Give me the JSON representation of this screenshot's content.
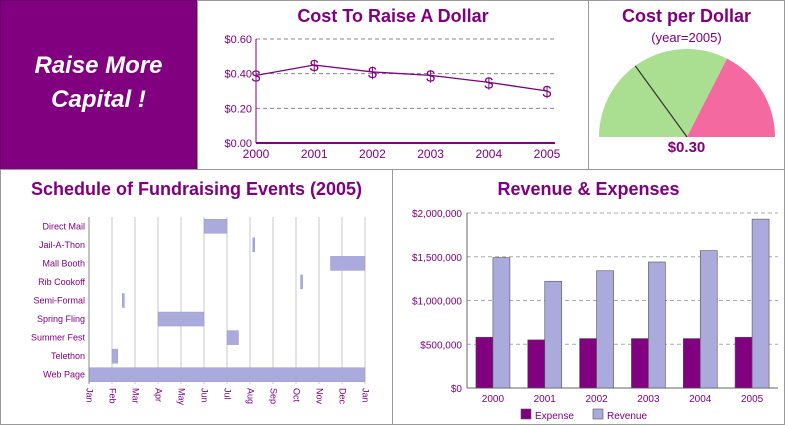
{
  "banner": {
    "line1": "Raise More",
    "line2": "Capital !"
  },
  "colors": {
    "purple": "#800080",
    "lavender": "#aaaadd",
    "gauge_green": "#aade90",
    "gauge_pink": "#f46aa0"
  },
  "panels": {
    "cost_line": {
      "title": "Cost To Raise A Dollar"
    },
    "gauge": {
      "title": "Cost per Dollar",
      "subtitle": "(year=2005)",
      "value_label": "$0.30"
    },
    "schedule": {
      "title": "Schedule of Fundraising Events (2005)"
    },
    "revenue": {
      "title": "Revenue & Expenses"
    }
  },
  "chart_data": [
    {
      "type": "line",
      "title": "Cost To Raise A Dollar",
      "x": [
        "2000",
        "2001",
        "2002",
        "2003",
        "2004",
        "2005"
      ],
      "series": [
        {
          "values": [
            0.39,
            0.45,
            0.41,
            0.39,
            0.35,
            0.3
          ]
        }
      ],
      "yticks": [
        "$0.00",
        "$0.20",
        "$0.40",
        "$0.60"
      ],
      "ylim": [
        0,
        0.6
      ],
      "marker": "$",
      "grid": true
    },
    {
      "type": "gauge",
      "title": "Cost per Dollar",
      "subtitle": "(year=2005)",
      "value": 0.3,
      "value_label": "$0.30",
      "range": [
        0,
        1
      ],
      "bands": [
        {
          "from": 0,
          "to": 0.65,
          "color": "#aade90"
        },
        {
          "from": 0.65,
          "to": 1,
          "color": "#f46aa0"
        }
      ]
    },
    {
      "type": "gantt",
      "title": "Schedule of Fundraising Events (2005)",
      "months": [
        "Jan",
        "Feb",
        "Mar",
        "Apr",
        "May",
        "Jun",
        "Jul",
        "Aug",
        "Sep",
        "Oct",
        "Nov",
        "Dec",
        "Jan"
      ],
      "tasks": [
        {
          "name": "Direct Mail",
          "start": 5.0,
          "end": 6.0
        },
        {
          "name": "Jail-A-Thon",
          "start": 7.12,
          "end": 7.2
        },
        {
          "name": "Mall Booth",
          "start": 10.5,
          "end": 12.0
        },
        {
          "name": "Rib Cookoff",
          "start": 9.2,
          "end": 9.28
        },
        {
          "name": "Semi-Formal",
          "start": 1.45,
          "end": 1.52
        },
        {
          "name": "Spring Fling",
          "start": 3.0,
          "end": 5.0
        },
        {
          "name": "Summer Fest",
          "start": 6.0,
          "end": 6.5
        },
        {
          "name": "Telethon",
          "start": 1.0,
          "end": 1.25
        },
        {
          "name": "Web Page",
          "start": 0.0,
          "end": 12.0
        }
      ]
    },
    {
      "type": "bar",
      "title": "Revenue & Expenses",
      "categories": [
        "2000",
        "2001",
        "2002",
        "2003",
        "2004",
        "2005"
      ],
      "series": [
        {
          "name": "Expense",
          "values": [
            580000,
            550000,
            565000,
            565000,
            565000,
            580000
          ],
          "color": "#800080"
        },
        {
          "name": "Revenue",
          "values": [
            1490000,
            1220000,
            1340000,
            1440000,
            1570000,
            1930000
          ],
          "color": "#aaaadd"
        }
      ],
      "yticks": [
        "$0",
        "$500,000",
        "$1,000,000",
        "$1,500,000",
        "$2,000,000"
      ],
      "ylim": [
        0,
        2000000
      ],
      "legend": "bottom",
      "grid": true
    }
  ]
}
